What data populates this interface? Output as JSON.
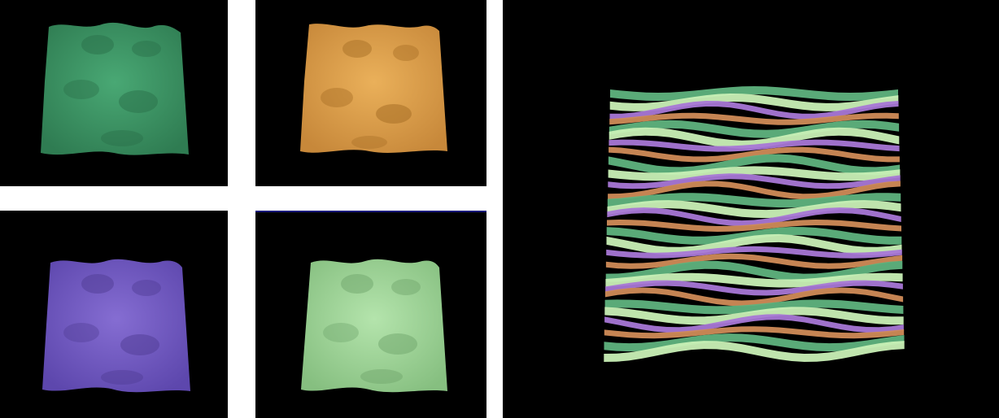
{
  "panels": [
    {
      "id": "green-surface",
      "color": "#3e9a68",
      "shade": "#2a6f49"
    },
    {
      "id": "orange-surface",
      "color": "#e2a24a",
      "shade": "#a86f26"
    },
    {
      "id": "purple-surface",
      "color": "#7b62c9",
      "shade": "#4f3c94"
    },
    {
      "id": "light-green-surface",
      "color": "#a8dca0",
      "shade": "#6fa56b"
    }
  ],
  "strip_colors": [
    "#5fb37e",
    "#c9f0b6",
    "#a877d6",
    "#d08b57"
  ]
}
